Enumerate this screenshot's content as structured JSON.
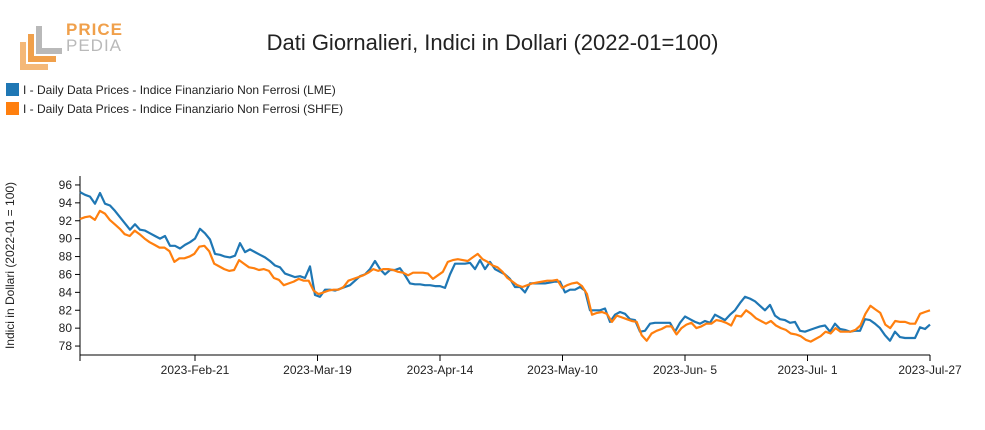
{
  "logo": {
    "top": "PRICE",
    "bottom": "PEDIA"
  },
  "colors": {
    "lme": "#1f77b4",
    "shfe": "#ff7f0e",
    "logo_orange": "#f0a04b",
    "logo_gray": "#b9b9b9"
  },
  "chart_data": {
    "type": "line",
    "title": "Dati Giornalieri, Indici in Dollari (2022-01=100)",
    "ylabel": "Indici in Dollari (2022-01 = 100)",
    "xlabel": "",
    "ylim": [
      77,
      97
    ],
    "yticks": [
      78,
      80,
      82,
      84,
      86,
      88,
      90,
      92,
      94,
      96
    ],
    "xticks": [
      "2023-Feb-21",
      "2023-Mar-19",
      "2023-Apr-14",
      "2023-May-10",
      "2023-Jun- 5",
      "2023-Jul- 1",
      "2023-Jul-27"
    ],
    "legend_position": "top-left",
    "grid": false,
    "series": [
      {
        "name": "I - Daily Data Prices - Indice Finanziario Non Ferrosi (LME)",
        "color": "#1f77b4",
        "values": [
          95.2,
          94.9,
          94.7,
          93.9,
          95.1,
          93.9,
          93.7,
          93.1,
          92.4,
          91.7,
          91.0,
          91.6,
          91.0,
          90.9,
          90.6,
          90.3,
          90.0,
          90.3,
          89.2,
          89.2,
          88.9,
          89.3,
          89.6,
          90.0,
          91.1,
          90.6,
          89.9,
          88.3,
          88.2,
          88.0,
          87.9,
          88.1,
          89.5,
          88.5,
          88.8,
          88.5,
          88.2,
          87.9,
          87.5,
          87.0,
          86.8,
          86.1,
          85.9,
          85.7,
          85.8,
          85.6,
          86.9,
          83.7,
          83.5,
          84.3,
          84.3,
          84.2,
          84.4,
          84.6,
          84.8,
          85.3,
          85.8,
          86.0,
          86.6,
          87.5,
          86.6,
          86.0,
          86.5,
          86.5,
          86.7,
          85.9,
          85.0,
          84.9,
          84.9,
          84.8,
          84.8,
          84.7,
          84.7,
          84.5,
          86.0,
          87.2,
          87.2,
          87.2,
          87.3,
          86.6,
          87.6,
          86.6,
          87.4,
          86.6,
          86.3,
          86.0,
          85.5,
          84.6,
          84.6,
          84.0,
          85.0,
          85.0,
          85.0,
          85.0,
          85.1,
          85.2,
          85.2,
          84.0,
          84.3,
          84.3,
          84.6,
          84.2,
          82.0,
          82.0,
          82.0,
          82.2,
          80.7,
          81.5,
          81.8,
          81.6,
          81.0,
          80.9,
          79.6,
          79.7,
          80.5,
          80.6,
          80.6,
          80.6,
          80.6,
          79.6,
          80.6,
          81.3,
          81.0,
          80.7,
          80.5,
          80.8,
          80.6,
          81.5,
          81.2,
          80.9,
          81.5,
          82.0,
          82.8,
          83.5,
          83.3,
          83.0,
          82.5,
          82.0,
          82.6,
          81.4,
          81.0,
          80.9,
          80.6,
          80.7,
          79.7,
          79.6,
          79.8,
          80.0,
          80.2,
          80.3,
          79.6,
          80.5,
          79.9,
          79.8,
          79.6,
          79.7,
          79.7,
          81.0,
          80.9,
          80.5,
          80.0,
          79.2,
          78.6,
          79.6,
          79.0,
          78.9,
          78.9,
          78.9,
          80.1,
          79.9,
          80.4
        ]
      },
      {
        "name": "I - Daily Data Prices - Indice Finanziario Non Ferrosi (SHFE)",
        "color": "#ff7f0e",
        "values": [
          92.2,
          92.4,
          92.5,
          92.1,
          93.1,
          92.8,
          92.1,
          91.6,
          91.1,
          90.5,
          90.3,
          90.9,
          90.5,
          90.0,
          89.6,
          89.3,
          89.0,
          89.0,
          88.6,
          87.4,
          87.8,
          87.8,
          88.0,
          88.3,
          89.1,
          89.2,
          88.6,
          87.2,
          86.9,
          86.6,
          86.4,
          86.5,
          87.6,
          87.2,
          86.8,
          86.7,
          86.5,
          86.6,
          86.4,
          85.6,
          85.4,
          84.8,
          85.0,
          85.2,
          85.5,
          85.3,
          85.3,
          84.2,
          83.8,
          84.0,
          84.2,
          84.3,
          84.3,
          84.6,
          85.3,
          85.5,
          85.7,
          85.9,
          86.2,
          86.6,
          86.4,
          86.6,
          86.6,
          86.5,
          86.3,
          86.2,
          85.9,
          86.2,
          86.2,
          86.2,
          86.1,
          85.5,
          85.9,
          86.3,
          87.4,
          87.6,
          87.7,
          87.6,
          87.5,
          87.9,
          88.3,
          87.7,
          87.4,
          87.0,
          86.8,
          86.3,
          85.6,
          85.2,
          84.8,
          84.6,
          84.8,
          85.0,
          85.1,
          85.2,
          85.3,
          85.3,
          85.4,
          84.5,
          84.8,
          85.0,
          85.1,
          84.7,
          83.8,
          81.5,
          81.7,
          81.8,
          81.6,
          80.7,
          81.4,
          81.2,
          81.0,
          80.8,
          80.7,
          79.2,
          78.6,
          79.4,
          79.7,
          79.9,
          80.2,
          80.2,
          79.3,
          80.0,
          80.4,
          80.6,
          80.0,
          80.2,
          80.5,
          80.5,
          80.9,
          80.8,
          80.6,
          80.3,
          81.4,
          81.3,
          82.0,
          81.6,
          81.1,
          80.8,
          80.5,
          80.8,
          80.3,
          80.0,
          79.8,
          79.4,
          79.3,
          79.1,
          78.7,
          78.5,
          78.8,
          79.1,
          79.6,
          79.4,
          80.0,
          79.6,
          79.6,
          79.6,
          79.8,
          80.3,
          81.6,
          82.5,
          82.1,
          81.7,
          80.4,
          80.0,
          80.8,
          80.7,
          80.7,
          80.5,
          80.5,
          81.6,
          81.8,
          82.0
        ]
      }
    ]
  }
}
